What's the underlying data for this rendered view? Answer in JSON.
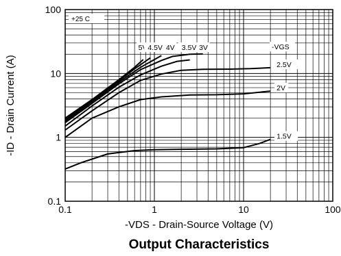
{
  "chart_data": {
    "type": "line",
    "title": "Output Characteristics",
    "xlabel": "-VDS - Drain-Source Voltage (V)",
    "ylabel": "-ID - Drain Current (A)",
    "x_scale": "log",
    "y_scale": "log",
    "xlim": [
      0.1,
      100
    ],
    "ylim": [
      0.1,
      100
    ],
    "x_ticks": [
      "0.1",
      "1",
      "10",
      "100"
    ],
    "y_ticks": [
      "0.1",
      "1",
      "10",
      "100"
    ],
    "grid": true,
    "annotation": "+25 C",
    "legend_title": "-VGS",
    "series": [
      {
        "name": "5V",
        "label_pos": "top",
        "x": [
          0.1,
          0.2,
          0.4,
          0.6,
          0.75
        ],
        "y": [
          2.0,
          3.9,
          8.0,
          12.5,
          16.5
        ]
      },
      {
        "name": "4.5V",
        "label_pos": "top",
        "x": [
          0.1,
          0.2,
          0.4,
          0.6,
          0.9
        ],
        "y": [
          1.9,
          3.8,
          7.7,
          11.8,
          17.5
        ]
      },
      {
        "name": "4V",
        "label_pos": "top",
        "x": [
          0.1,
          0.2,
          0.4,
          0.7,
          1.2
        ],
        "y": [
          1.8,
          3.6,
          7.3,
          12.5,
          19.0
        ]
      },
      {
        "name": "3.5V",
        "label_pos": "top",
        "x": [
          0.1,
          0.2,
          0.4,
          0.7,
          1.2,
          1.6,
          2.5,
          3.5
        ],
        "y": [
          1.7,
          3.4,
          6.9,
          11.5,
          16.0,
          18.5,
          20.0,
          20.2
        ]
      },
      {
        "name": "3V",
        "label_pos": "top",
        "x": [
          0.1,
          0.2,
          0.4,
          0.7,
          1.2,
          1.8,
          2.5
        ],
        "y": [
          1.5,
          3.1,
          6.1,
          9.5,
          13.0,
          15.5,
          16.3
        ]
      },
      {
        "name": "2.5V",
        "label_pos": "right",
        "x": [
          0.1,
          0.2,
          0.4,
          0.7,
          1.2,
          2.0,
          3.5,
          7,
          12,
          20
        ],
        "y": [
          1.3,
          2.6,
          5.0,
          7.8,
          9.8,
          11.2,
          11.6,
          11.7,
          11.9,
          12.3
        ]
      },
      {
        "name": "2V",
        "label_pos": "right",
        "x": [
          0.1,
          0.2,
          0.4,
          0.7,
          1.2,
          2.5,
          5,
          10,
          20
        ],
        "y": [
          1.0,
          2.0,
          3.0,
          3.9,
          4.3,
          4.6,
          4.65,
          4.8,
          5.3
        ]
      },
      {
        "name": "1.5V",
        "label_pos": "right",
        "x": [
          0.1,
          0.15,
          0.3,
          0.6,
          1.0,
          2.0,
          5,
          10,
          15,
          20
        ],
        "y": [
          0.32,
          0.4,
          0.55,
          0.62,
          0.64,
          0.65,
          0.66,
          0.69,
          0.8,
          0.93
        ]
      }
    ]
  }
}
